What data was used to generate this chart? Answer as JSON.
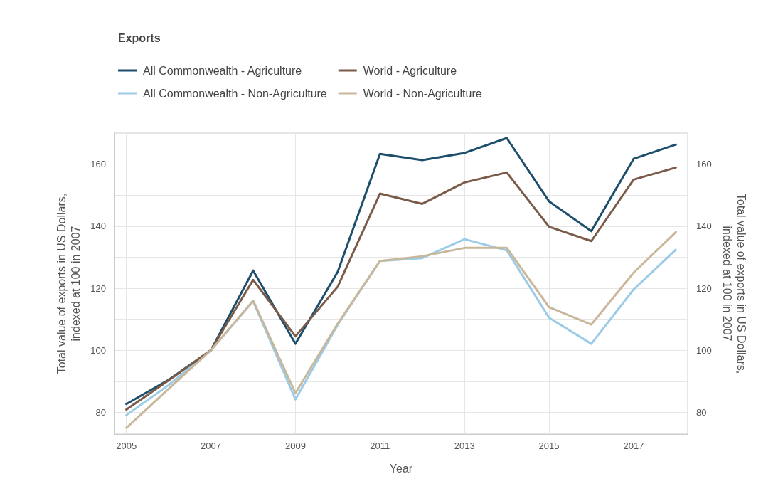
{
  "chart_data": {
    "type": "line",
    "title": "Exports",
    "xlabel": "Year",
    "ylabel": "Total value of exports in US Dollars, indexed at 100 in 2007",
    "y2label": "Total value of exports in US Dollars, indexed at 100 in 2007",
    "x": [
      2005,
      2006,
      2007,
      2008,
      2009,
      2010,
      2011,
      2012,
      2013,
      2014,
      2015,
      2016,
      2017,
      2018
    ],
    "series": [
      {
        "name": "All Commonwealth - Agriculture",
        "color": "#1d4e6b",
        "values": [
          82.7,
          90.5,
          100,
          125.7,
          102.1,
          125.3,
          163.3,
          161.3,
          163.6,
          168.4,
          148.0,
          138.4,
          161.7,
          166.3
        ]
      },
      {
        "name": "All Commonwealth - Non-Agriculture",
        "color": "#9ccbe8",
        "values": [
          79.1,
          88.8,
          100,
          115.8,
          84.2,
          108.2,
          128.8,
          129.7,
          135.8,
          132.2,
          110.5,
          102.1,
          119.6,
          132.4
        ]
      },
      {
        "name": "World - Agriculture",
        "color": "#7a5a48",
        "values": [
          80.9,
          90.3,
          100,
          122.7,
          104.5,
          120.5,
          150.5,
          147.2,
          154.1,
          157.3,
          139.8,
          135.2,
          155.0,
          158.9
        ]
      },
      {
        "name": "World - Non-Agriculture",
        "color": "#c9b79a",
        "values": [
          75.0,
          87.6,
          100,
          116.0,
          86.2,
          108.6,
          128.8,
          130.3,
          133.0,
          133.0,
          113.9,
          108.3,
          125.0,
          138.1
        ]
      }
    ],
    "xlim": [
      2004.72,
      2018.28
    ],
    "xticks": [
      2005,
      2007,
      2009,
      2011,
      2013,
      2015,
      2017
    ],
    "ylim": [
      73,
      170
    ],
    "yticks": [
      80,
      {
        "value": 90,
        "label": null
      },
      100,
      {
        "value": 110,
        "label": null
      },
      120,
      {
        "value": 130,
        "label": null
      },
      140,
      {
        "value": 150,
        "label": null
      },
      160,
      {
        "value": 170,
        "label": null
      }
    ],
    "y2lim": [
      73,
      170
    ],
    "y2ticks": [
      80,
      100,
      120,
      140,
      160
    ],
    "grid": true,
    "legend": "top left",
    "marker": "none",
    "line_style": "solid"
  }
}
